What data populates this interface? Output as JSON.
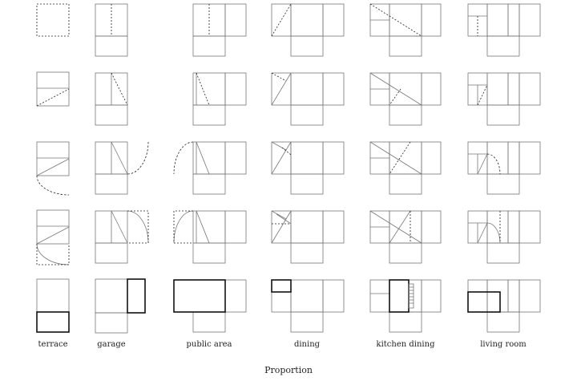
{
  "labels": [
    "terrace",
    "garage",
    "public area",
    "dining",
    "kitchen dining",
    "living room"
  ],
  "caption": "Proportion"
}
